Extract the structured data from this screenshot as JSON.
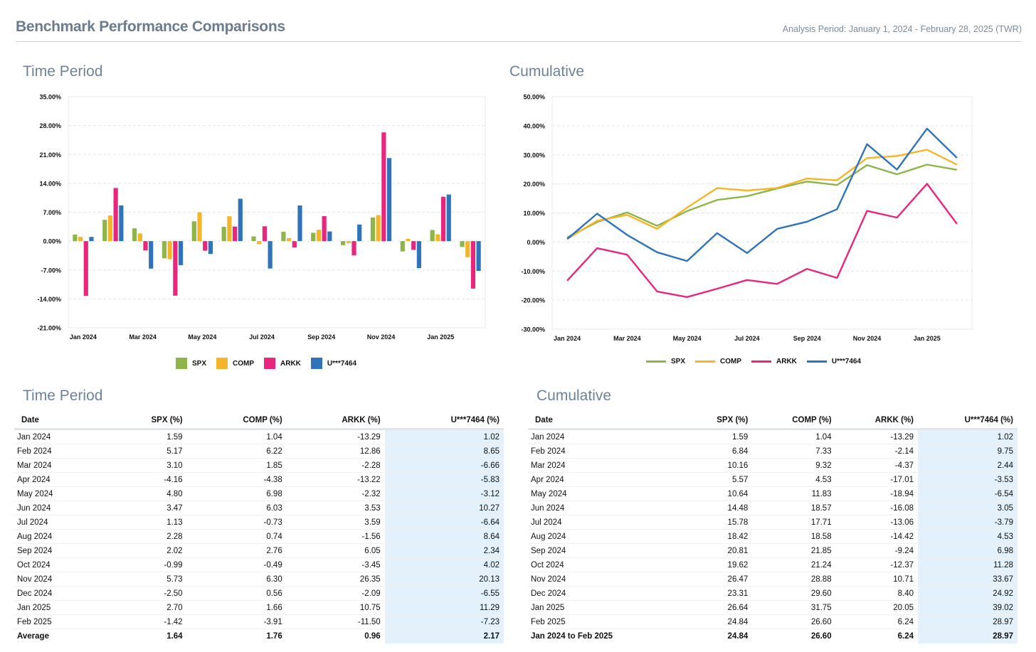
{
  "header": {
    "title": "Benchmark Performance Comparisons",
    "period": "Analysis Period: January 1, 2024 - February 28, 2025 (TWR)"
  },
  "colors": {
    "SPX": "#8db54a",
    "COMP": "#f5b52a",
    "ARKK": "#e8267e",
    "U***7464": "#2f74ba"
  },
  "sections": {
    "time_period_chart_title": "Time Period",
    "cumulative_chart_title": "Cumulative",
    "time_period_table_title": "Time Period",
    "cumulative_table_title": "Cumulative"
  },
  "chart_data": [
    {
      "type": "bar",
      "title": "Time Period",
      "categories": [
        "Jan 2024",
        "Feb 2024",
        "Mar 2024",
        "Apr 2024",
        "May 2024",
        "Jun 2024",
        "Jul 2024",
        "Aug 2024",
        "Sep 2024",
        "Oct 2024",
        "Nov 2024",
        "Dec 2024",
        "Jan 2025",
        "Feb 2025"
      ],
      "tick_labels": [
        "Jan 2024",
        "Mar 2024",
        "May 2024",
        "Jul 2024",
        "Sep 2024",
        "Nov 2024",
        "Jan 2025"
      ],
      "y_ticks": [
        "35.00%",
        "28.00%",
        "21.00%",
        "14.00%",
        "7.00%",
        "0.00%",
        "-7.00%",
        "-14.00%",
        "-21.00%"
      ],
      "ylim": [
        -21,
        35
      ],
      "grid": true,
      "legend": "bottom",
      "series": [
        {
          "name": "SPX",
          "values": [
            1.59,
            5.17,
            3.1,
            -4.16,
            4.8,
            3.47,
            1.13,
            2.28,
            2.02,
            -0.99,
            5.73,
            -2.5,
            2.7,
            -1.42
          ]
        },
        {
          "name": "COMP",
          "values": [
            1.04,
            6.22,
            1.85,
            -4.38,
            6.98,
            6.03,
            -0.73,
            0.74,
            2.76,
            -0.49,
            6.3,
            0.56,
            1.66,
            -3.91
          ]
        },
        {
          "name": "ARKK",
          "values": [
            -13.29,
            12.86,
            -2.28,
            -13.22,
            -2.32,
            3.53,
            3.59,
            -1.56,
            6.05,
            -3.45,
            26.35,
            -2.09,
            10.75,
            -11.5
          ]
        },
        {
          "name": "U***7464",
          "values": [
            1.02,
            8.65,
            -6.66,
            -5.83,
            -3.12,
            10.27,
            -6.64,
            8.64,
            2.34,
            4.02,
            20.13,
            -6.55,
            11.29,
            -7.23
          ]
        }
      ]
    },
    {
      "type": "line",
      "title": "Cumulative",
      "categories": [
        "Jan 2024",
        "Feb 2024",
        "Mar 2024",
        "Apr 2024",
        "May 2024",
        "Jun 2024",
        "Jul 2024",
        "Aug 2024",
        "Sep 2024",
        "Oct 2024",
        "Nov 2024",
        "Dec 2024",
        "Jan 2025",
        "Feb 2025"
      ],
      "tick_labels": [
        "Jan 2024",
        "Mar 2024",
        "May 2024",
        "Jul 2024",
        "Sep 2024",
        "Nov 2024",
        "Jan 2025"
      ],
      "y_ticks": [
        "50.00%",
        "40.00%",
        "30.00%",
        "20.00%",
        "10.00%",
        "0.00%",
        "-10.00%",
        "-20.00%",
        "-30.00%"
      ],
      "ylim": [
        -30,
        50
      ],
      "grid": true,
      "legend": "bottom",
      "series": [
        {
          "name": "SPX",
          "values": [
            1.59,
            6.84,
            10.16,
            5.57,
            10.64,
            14.48,
            15.78,
            18.42,
            20.81,
            19.62,
            26.47,
            23.31,
            26.64,
            24.84
          ]
        },
        {
          "name": "COMP",
          "values": [
            1.04,
            7.33,
            9.32,
            4.53,
            11.83,
            18.57,
            17.71,
            18.58,
            21.85,
            21.24,
            28.88,
            29.6,
            31.75,
            26.6
          ]
        },
        {
          "name": "ARKK",
          "values": [
            -13.29,
            -2.14,
            -4.37,
            -17.01,
            -18.94,
            -16.08,
            -13.06,
            -14.42,
            -9.24,
            -12.37,
            10.71,
            8.4,
            20.05,
            6.24
          ]
        },
        {
          "name": "U***7464",
          "values": [
            1.02,
            9.75,
            2.44,
            -3.53,
            -6.54,
            3.05,
            -3.79,
            4.53,
            6.98,
            11.28,
            33.67,
            24.92,
            39.02,
            28.97
          ]
        }
      ]
    }
  ],
  "time_period_table": {
    "headers": [
      "Date",
      "SPX (%)",
      "COMP (%)",
      "ARKK (%)",
      "U***7464 (%)"
    ],
    "rows": [
      [
        "Jan 2024",
        "1.59",
        "1.04",
        "-13.29",
        "1.02"
      ],
      [
        "Feb 2024",
        "5.17",
        "6.22",
        "12.86",
        "8.65"
      ],
      [
        "Mar 2024",
        "3.10",
        "1.85",
        "-2.28",
        "-6.66"
      ],
      [
        "Apr 2024",
        "-4.16",
        "-4.38",
        "-13.22",
        "-5.83"
      ],
      [
        "May 2024",
        "4.80",
        "6.98",
        "-2.32",
        "-3.12"
      ],
      [
        "Jun 2024",
        "3.47",
        "6.03",
        "3.53",
        "10.27"
      ],
      [
        "Jul 2024",
        "1.13",
        "-0.73",
        "3.59",
        "-6.64"
      ],
      [
        "Aug 2024",
        "2.28",
        "0.74",
        "-1.56",
        "8.64"
      ],
      [
        "Sep 2024",
        "2.02",
        "2.76",
        "6.05",
        "2.34"
      ],
      [
        "Oct 2024",
        "-0.99",
        "-0.49",
        "-3.45",
        "4.02"
      ],
      [
        "Nov 2024",
        "5.73",
        "6.30",
        "26.35",
        "20.13"
      ],
      [
        "Dec 2024",
        "-2.50",
        "0.56",
        "-2.09",
        "-6.55"
      ],
      [
        "Jan 2025",
        "2.70",
        "1.66",
        "10.75",
        "11.29"
      ],
      [
        "Feb 2025",
        "-1.42",
        "-3.91",
        "-11.50",
        "-7.23"
      ]
    ],
    "summary": [
      "Average",
      "1.64",
      "1.76",
      "0.96",
      "2.17"
    ]
  },
  "cumulative_table": {
    "headers": [
      "Date",
      "SPX (%)",
      "COMP (%)",
      "ARKK (%)",
      "U***7464 (%)"
    ],
    "rows": [
      [
        "Jan 2024",
        "1.59",
        "1.04",
        "-13.29",
        "1.02"
      ],
      [
        "Feb 2024",
        "6.84",
        "7.33",
        "-2.14",
        "9.75"
      ],
      [
        "Mar 2024",
        "10.16",
        "9.32",
        "-4.37",
        "2.44"
      ],
      [
        "Apr 2024",
        "5.57",
        "4.53",
        "-17.01",
        "-3.53"
      ],
      [
        "May 2024",
        "10.64",
        "11.83",
        "-18.94",
        "-6.54"
      ],
      [
        "Jun 2024",
        "14.48",
        "18.57",
        "-16.08",
        "3.05"
      ],
      [
        "Jul 2024",
        "15.78",
        "17.71",
        "-13.06",
        "-3.79"
      ],
      [
        "Aug 2024",
        "18.42",
        "18.58",
        "-14.42",
        "4.53"
      ],
      [
        "Sep 2024",
        "20.81",
        "21.85",
        "-9.24",
        "6.98"
      ],
      [
        "Oct 2024",
        "19.62",
        "21.24",
        "-12.37",
        "11.28"
      ],
      [
        "Nov 2024",
        "26.47",
        "28.88",
        "10.71",
        "33.67"
      ],
      [
        "Dec 2024",
        "23.31",
        "29.60",
        "8.40",
        "24.92"
      ],
      [
        "Jan 2025",
        "26.64",
        "31.75",
        "20.05",
        "39.02"
      ],
      [
        "Feb 2025",
        "24.84",
        "26.60",
        "6.24",
        "28.97"
      ]
    ],
    "summary": [
      "Jan 2024 to Feb 2025",
      "24.84",
      "26.60",
      "6.24",
      "28.97"
    ]
  }
}
